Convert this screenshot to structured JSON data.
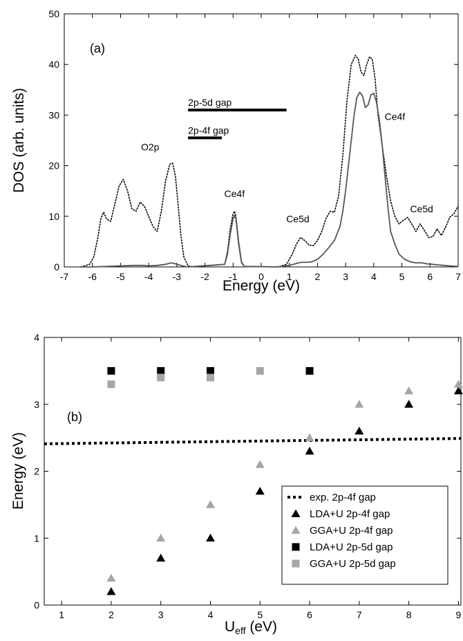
{
  "panels": [
    {
      "label": "(a)",
      "xlabel": "Energy (eV)",
      "ylabel": "DOS (arb. units)",
      "xlim": [
        -7,
        7
      ],
      "ylim": [
        0,
        50
      ],
      "xticks": [
        -7,
        -6,
        -5,
        -4,
        -3,
        -2,
        -1,
        0,
        1,
        2,
        3,
        4,
        5,
        6,
        7
      ],
      "yticks": [
        0,
        10,
        20,
        30,
        40,
        50
      ]
    },
    {
      "label": "(b)",
      "xlabel": "U",
      "xlabel_sub": "eff",
      "xlabel_rest": " (eV)",
      "ylabel": "Energy (eV)",
      "xlim": [
        0.65,
        9.05
      ],
      "ylim": [
        0,
        4
      ],
      "xticks": [
        1,
        2,
        3,
        4,
        5,
        6,
        7,
        8,
        9
      ],
      "yticks": [
        0,
        1,
        2,
        3,
        4
      ]
    }
  ],
  "chart_data": [
    {
      "type": "line",
      "title": "",
      "xlabel": "Energy (eV)",
      "ylabel": "DOS (arb. units)",
      "xlim": [
        -7,
        7
      ],
      "ylim": [
        0,
        50
      ],
      "grid": false,
      "series": [
        {
          "style": "dotted",
          "color": "#000000",
          "x": [
            -6.4,
            -6.1,
            -5.95,
            -5.8,
            -5.7,
            -5.6,
            -5.5,
            -5.35,
            -5.2,
            -5.05,
            -4.9,
            -4.75,
            -4.6,
            -4.45,
            -4.3,
            -4.15,
            -4.0,
            -3.85,
            -3.7,
            -3.55,
            -3.4,
            -3.25,
            -3.15,
            -3.05,
            -2.95,
            -2.85,
            -2.75,
            -2.6,
            -2.4,
            -1.3,
            -1.2,
            -1.1,
            -1.0,
            -0.95,
            -0.9,
            -0.8,
            -0.7,
            -0.6,
            0.6,
            0.9,
            1.1,
            1.25,
            1.4,
            1.55,
            1.7,
            1.85,
            2.0,
            2.15,
            2.3,
            2.45,
            2.6,
            2.75,
            2.9,
            3.05,
            3.2,
            3.35,
            3.45,
            3.55,
            3.65,
            3.75,
            3.85,
            3.95,
            4.05,
            4.15,
            4.3,
            4.45,
            4.6,
            4.75,
            4.9,
            5.05,
            5.2,
            5.35,
            5.5,
            5.65,
            5.8,
            5.95,
            6.1,
            6.25,
            6.4,
            6.55,
            6.7,
            6.85,
            7.0
          ],
          "y": [
            0,
            0.5,
            2,
            6,
            9.5,
            10.8,
            9.5,
            9,
            12.5,
            16,
            17.3,
            15,
            11.5,
            11,
            12.8,
            12,
            10,
            8,
            7,
            11,
            17,
            20.3,
            20.5,
            18,
            12,
            6,
            2,
            0.2,
            0,
            0.5,
            3,
            7.5,
            10.5,
            11,
            10,
            5,
            1,
            0.1,
            0,
            0.5,
            2.5,
            4.5,
            5.8,
            5.2,
            4.3,
            4.2,
            5.2,
            7,
            9.5,
            11,
            10.8,
            14,
            22,
            33,
            40,
            41.8,
            41,
            38.5,
            37.8,
            40,
            41.5,
            41,
            37,
            30,
            24,
            18,
            13,
            10,
            8.5,
            9.2,
            9.8,
            8.5,
            7,
            8.5,
            7.2,
            5.8,
            6,
            7.5,
            6.2,
            7.8,
            9.8,
            10.5,
            12
          ]
        },
        {
          "style": "solid",
          "color": "#555555",
          "x": [
            -6.4,
            -6.0,
            -5.5,
            -5.0,
            -4.5,
            -4.2,
            -4.0,
            -3.7,
            -3.4,
            -3.2,
            -3.1,
            -3.0,
            -2.8,
            -2.6,
            -1.3,
            -1.2,
            -1.1,
            -1.0,
            -0.95,
            -0.9,
            -0.8,
            -0.7,
            -0.6,
            0.6,
            1.0,
            1.2,
            1.4,
            1.6,
            1.8,
            2.0,
            2.2,
            2.4,
            2.6,
            2.8,
            2.9,
            3.0,
            3.1,
            3.2,
            3.3,
            3.4,
            3.5,
            3.6,
            3.7,
            3.8,
            3.9,
            4.0,
            4.1,
            4.2,
            4.3,
            4.4,
            4.5,
            4.6,
            4.75,
            4.9,
            5.1,
            5.3,
            5.5,
            5.7,
            5.9,
            6.1,
            6.3,
            6.5,
            6.7,
            7.0
          ],
          "y": [
            0,
            0,
            0.1,
            0.2,
            0.3,
            0.3,
            0.2,
            0.3,
            0.5,
            0.8,
            0.7,
            0.5,
            0.2,
            0,
            0.5,
            2.5,
            6.5,
            9.5,
            10.2,
            9.5,
            4.5,
            0.8,
            0.1,
            0,
            0.3,
            0.6,
            0.9,
            0.9,
            1,
            1.5,
            2.5,
            3.8,
            5.2,
            8,
            11,
            15,
            20,
            25,
            30,
            33.5,
            34.5,
            33.8,
            31.5,
            32,
            34,
            34.3,
            32.5,
            29,
            24,
            18,
            12,
            7,
            4.5,
            2.5,
            1.5,
            1,
            0.8,
            0.8,
            0.6,
            0.5,
            0.4,
            0.3,
            0.2,
            0.1
          ]
        }
      ],
      "gap_bars": [
        {
          "label": "2p-5d gap",
          "x0": -2.6,
          "x1": 0.9,
          "y": 31
        },
        {
          "label": "2p-4f gap",
          "x0": -2.6,
          "x1": -1.4,
          "y": 25.5
        }
      ],
      "annotations": [
        {
          "text": "O2p",
          "x": -3.95,
          "y": 23
        },
        {
          "text": "Ce4f",
          "x": -0.95,
          "y": 13.8
        },
        {
          "text": "Ce5d",
          "x": 1.3,
          "y": 8.8
        },
        {
          "text": "Ce4f",
          "x": 4.75,
          "y": 29
        },
        {
          "text": "Ce5d",
          "x": 5.7,
          "y": 10.8
        }
      ]
    },
    {
      "type": "scatter",
      "title": "",
      "xlabel": "Ueff (eV)",
      "ylabel": "Energy (eV)",
      "xlim": [
        0.65,
        9.05
      ],
      "ylim": [
        0,
        4
      ],
      "grid": false,
      "legend_position": "lower-right",
      "series": [
        {
          "name": "exp. 2p-4f gap",
          "marker": "dotted-line",
          "color": "#000000",
          "x": [
            0.65,
            9.05
          ],
          "y": [
            2.41,
            2.49
          ]
        },
        {
          "name": "LDA+U 2p-4f gap",
          "marker": "triangle",
          "color": "#000000",
          "x": [
            2,
            3,
            4,
            5,
            6,
            7,
            8,
            9
          ],
          "y": [
            0.2,
            0.7,
            1.0,
            1.7,
            2.3,
            2.6,
            3.0,
            3.2
          ]
        },
        {
          "name": "GGA+U 2p-4f gap",
          "marker": "triangle",
          "color": "#a6a6a6",
          "x": [
            2,
            3,
            4,
            5,
            6,
            7,
            8,
            9
          ],
          "y": [
            0.4,
            1.0,
            1.5,
            2.1,
            2.5,
            3.0,
            3.2,
            3.3
          ]
        },
        {
          "name": "LDA+U 2p-5d gap",
          "marker": "square",
          "color": "#000000",
          "x": [
            2,
            3,
            4,
            6
          ],
          "y": [
            3.5,
            3.5,
            3.5,
            3.5
          ]
        },
        {
          "name": "GGA+U 2p-5d gap",
          "marker": "square",
          "color": "#a6a6a6",
          "x": [
            2,
            3,
            4,
            5
          ],
          "y": [
            3.3,
            3.4,
            3.4,
            3.5
          ]
        }
      ]
    }
  ]
}
